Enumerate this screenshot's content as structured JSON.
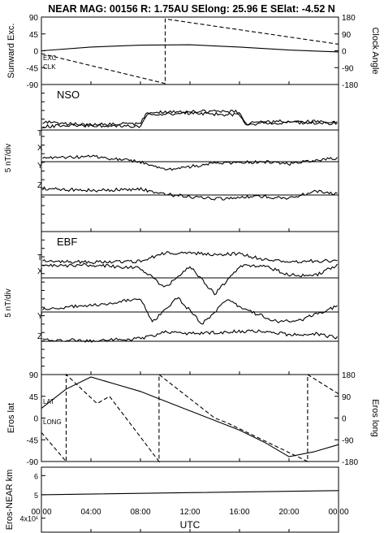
{
  "header": {
    "title": "NEAR MAG: 00156  R: 1.75AU  SElong:   25.96 E  SElat:   -4.52 N"
  },
  "chart_data": [
    {
      "type": "line",
      "title": "",
      "ylabel": "Sunward Exc.",
      "y2label": "Clock Angle",
      "ylim": [
        -90,
        90
      ],
      "y2lim": [
        -180,
        180
      ],
      "yticks": [
        "90",
        "45",
        "0",
        "-45",
        "-90"
      ],
      "y2ticks": [
        "180",
        "90",
        "0",
        "-90",
        "-180"
      ],
      "annotations": [
        "EXC",
        "CLK"
      ],
      "series": [
        {
          "name": "EXC",
          "x": [
            0,
            4,
            8,
            12,
            16,
            20,
            24
          ],
          "values": [
            0,
            10,
            15,
            16,
            10,
            2,
            -3
          ]
        },
        {
          "name": "CLK",
          "x": [
            0,
            10,
            10,
            24
          ],
          "values": [
            -15,
            -175,
            170,
            35
          ]
        }
      ]
    },
    {
      "type": "line",
      "title": "NSO",
      "ylabel": "5 nT/div",
      "annotations": [
        "T",
        "X",
        "Y",
        "Z"
      ],
      "series": [
        {
          "name": "T",
          "x": [
            0,
            4,
            8,
            8.5,
            12,
            16,
            16.5,
            20,
            24
          ],
          "values": [
            1.2,
            0.8,
            1.0,
            2.6,
            2.9,
            2.8,
            1.0,
            1.4,
            1.2
          ]
        },
        {
          "name": "X",
          "x": [
            0,
            4,
            8,
            8.5,
            12,
            16,
            16.5,
            20,
            24
          ],
          "values": [
            0.6,
            0.7,
            0.6,
            2.4,
            2.6,
            2.3,
            0.9,
            1.2,
            1.0
          ]
        },
        {
          "name": "Y",
          "x": [
            0,
            4,
            8,
            10,
            14,
            18,
            20,
            22,
            24
          ],
          "values": [
            0.5,
            0.8,
            0.0,
            -1.2,
            -0.3,
            0.0,
            -0.4,
            0.2,
            0.6
          ]
        },
        {
          "name": "Z",
          "x": [
            0,
            4,
            8,
            10,
            14,
            16,
            18,
            20,
            22,
            24
          ],
          "values": [
            1.0,
            0.7,
            0.9,
            0.1,
            -0.6,
            -0.4,
            -0.2,
            -0.6,
            0.6,
            0.2
          ]
        }
      ]
    },
    {
      "type": "line",
      "title": "EBF",
      "ylabel": "5 nT/div",
      "annotations": [
        "T",
        "X",
        "Y",
        "Z"
      ],
      "series": [
        {
          "name": "T",
          "x": [
            0,
            4,
            8,
            10,
            12,
            14,
            16,
            18,
            20,
            22,
            24
          ],
          "values": [
            2.6,
            2.4,
            2.6,
            3.8,
            3.8,
            3.6,
            3.7,
            2.8,
            2.4,
            2.6,
            2.7
          ]
        },
        {
          "name": "X",
          "x": [
            0,
            4,
            8,
            10,
            12,
            14,
            16,
            18,
            20,
            22,
            24
          ],
          "values": [
            1.8,
            2.0,
            1.5,
            -1.5,
            1.8,
            -2.5,
            1.8,
            1.8,
            0.5,
            0.3,
            2.0
          ]
        },
        {
          "name": "Y",
          "x": [
            0,
            4,
            8,
            9,
            11,
            13,
            15,
            17,
            19,
            21,
            24
          ],
          "values": [
            0.5,
            1.0,
            2.0,
            -1.5,
            2.2,
            -1.8,
            1.8,
            0.0,
            -1.5,
            -1.2,
            1.0
          ]
        },
        {
          "name": "Z",
          "x": [
            0,
            4,
            8,
            10,
            12,
            16,
            18,
            20,
            22,
            24
          ],
          "values": [
            0.3,
            0.1,
            0.4,
            1.4,
            1.2,
            1.5,
            1.6,
            1.0,
            1.2,
            0.5
          ]
        }
      ]
    },
    {
      "type": "line",
      "ylabel": "Eros lat",
      "y2label": "Eros long",
      "ylim": [
        -90,
        90
      ],
      "y2lim": [
        -180,
        180
      ],
      "yticks": [
        "90",
        "45",
        "0",
        "-45",
        "-90"
      ],
      "y2ticks": [
        "180",
        "90",
        "0",
        "-90",
        "-180"
      ],
      "annotations": [
        "LAT",
        "LONG"
      ],
      "series": [
        {
          "name": "LAT",
          "x": [
            0,
            2,
            4,
            6,
            8,
            10,
            12,
            14,
            16,
            18,
            20,
            22,
            24
          ],
          "values": [
            20,
            60,
            85,
            70,
            55,
            35,
            15,
            -5,
            -25,
            -50,
            -80,
            -70,
            -55
          ]
        },
        {
          "name": "LONG",
          "x": [
            0,
            2,
            2,
            4.5,
            5.5,
            9.5,
            9.5,
            14,
            15,
            21.5,
            21.5,
            24
          ],
          "values": [
            -60,
            -180,
            180,
            60,
            90,
            -180,
            180,
            0,
            -20,
            -180,
            180,
            100
          ]
        }
      ]
    },
    {
      "type": "line",
      "ylabel": "Eros-NEAR km",
      "yticks": [
        "6",
        "5",
        "4x10¹"
      ],
      "ylim": [
        35,
        65
      ],
      "scale": "log",
      "series": [
        {
          "name": "",
          "x": [
            0,
            12,
            24
          ],
          "values": [
            50,
            51,
            52
          ]
        }
      ]
    }
  ],
  "xaxis": {
    "label": "UTC",
    "ticks": [
      "00:00",
      "04:00",
      "08:00",
      "12:00",
      "16:00",
      "20:00",
      "00:00"
    ]
  }
}
